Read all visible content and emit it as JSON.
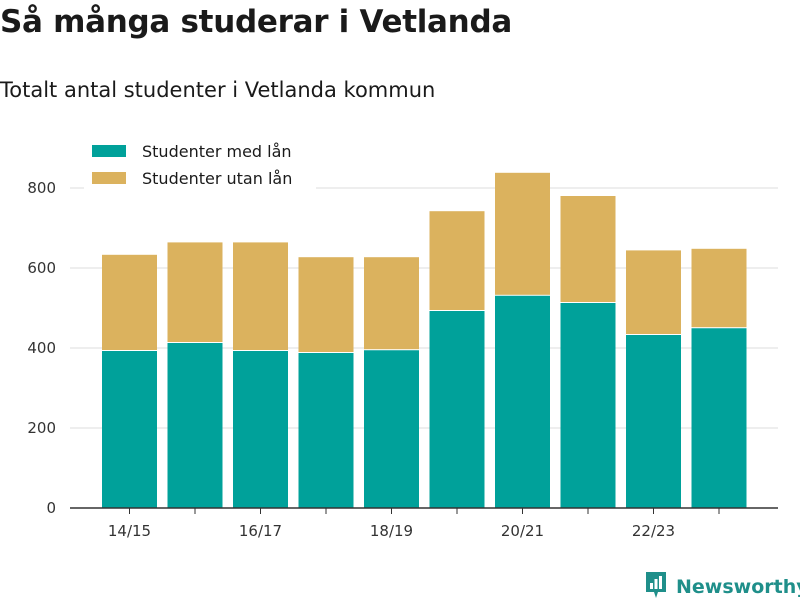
{
  "title": "Så många studerar i Vetlanda",
  "subtitle": "Totalt antal studenter i Vetlanda kommun",
  "brand": {
    "name": "Newsworthy",
    "icon": "newsworthy-logo-icon",
    "color": "#1f8f8a"
  },
  "chart_data": {
    "type": "bar",
    "stacked": true,
    "title": "",
    "xlabel": "",
    "ylabel": "",
    "categories": [
      "14/15",
      "15/16",
      "16/17",
      "17/18",
      "18/19",
      "19/20",
      "20/21",
      "21/22",
      "22/23",
      "23/24"
    ],
    "x_tick_labels": [
      "14/15",
      "",
      "16/17",
      "",
      "18/19",
      "",
      "20/21",
      "",
      "22/23",
      ""
    ],
    "series": [
      {
        "name": "Studenter med lån",
        "color": "#00a19a",
        "values": [
          395,
          415,
          395,
          390,
          397,
          495,
          533,
          515,
          435,
          452
        ]
      },
      {
        "name": "Studenter utan lån",
        "color": "#dbb25e",
        "values": [
          238,
          249,
          269,
          237,
          230,
          247,
          305,
          265,
          209,
          196
        ]
      }
    ],
    "ylim": [
      0,
      800
    ],
    "yticks": [
      0,
      200,
      400,
      600,
      800
    ],
    "grid": true,
    "legend_position": "top-left"
  }
}
